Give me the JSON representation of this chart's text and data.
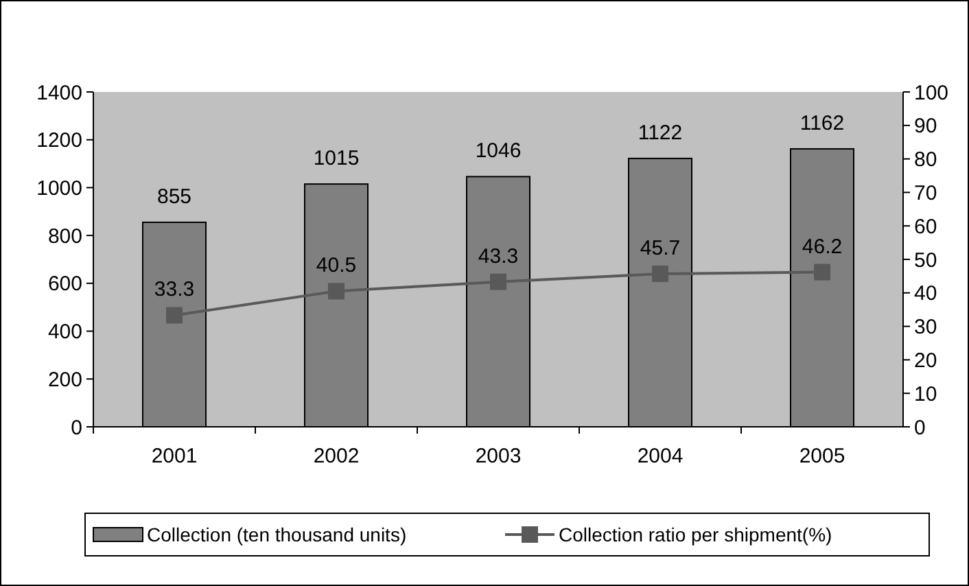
{
  "chart_data": {
    "type": "bar",
    "categories": [
      "2001",
      "2002",
      "2003",
      "2004",
      "2005"
    ],
    "series": [
      {
        "name": "Collection (ten thousand units)",
        "color": "#808080",
        "values": [
          855,
          1015,
          1046,
          1122,
          1162
        ]
      },
      {
        "name": "Collection ratio per shipment(%)",
        "type": "line",
        "axis": "y2",
        "color": "#595959",
        "values": [
          33.3,
          40.5,
          43.3,
          45.7,
          46.2
        ]
      }
    ],
    "ylim": [
      0,
      1400
    ],
    "yticks": [
      0,
      200,
      400,
      600,
      800,
      1000,
      1200,
      1400
    ],
    "y2lim": [
      0,
      100
    ],
    "y2ticks": [
      0,
      10,
      20,
      30,
      40,
      50,
      60,
      70,
      80,
      90,
      100
    ],
    "data_labels": true,
    "legend": "bottom",
    "marker": "square",
    "grid": false
  }
}
